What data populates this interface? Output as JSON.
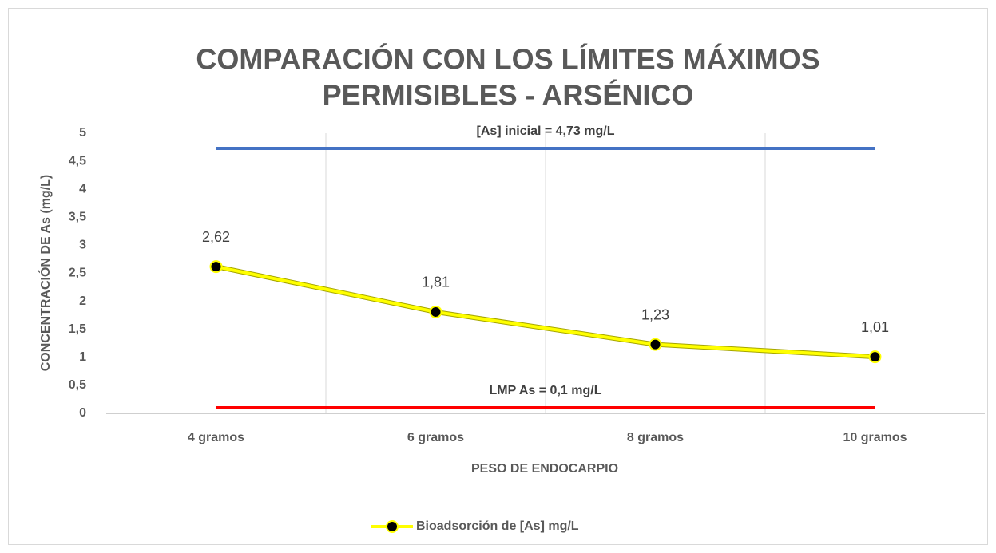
{
  "chart_data": {
    "type": "line",
    "title": [
      "COMPARACIÓN CON LOS LÍMITES MÁXIMOS",
      "PERMISIBLES - ARSÉNICO"
    ],
    "x_label": "PESO DE ENDOCARPIO",
    "y_label": "CONCENTRACIÓN DE As (mg/L)",
    "categories": [
      "4 gramos",
      "6 gramos",
      "8 gramos",
      "10 gramos"
    ],
    "series": [
      {
        "name": "Bioadsorción de [As] mg/L",
        "color": "#ffff00",
        "marker_color": "#000000",
        "values": [
          2.62,
          1.81,
          1.23,
          1.01
        ],
        "value_labels": [
          "2,62",
          "1,81",
          "1,23",
          "1,01"
        ]
      }
    ],
    "reference_lines": [
      {
        "value": 4.73,
        "label": "[As] inicial = 4,73 mg/L",
        "color": "#4472c4"
      },
      {
        "value": 0.1,
        "label": "LMP As = 0,1 mg/L",
        "color": "#ff0000"
      }
    ],
    "ylim": [
      0,
      5
    ],
    "yticks": [
      0,
      {
        "value": 0.5,
        "label": "0,5"
      },
      1,
      {
        "value": 1.5,
        "label": "1,5"
      },
      2,
      {
        "value": 2.5,
        "label": "2,5"
      },
      3,
      {
        "value": 3.5,
        "label": "3,5"
      },
      4,
      {
        "value": 4.5,
        "label": "4,5"
      },
      5
    ],
    "grid": "x",
    "legend": "bottom"
  }
}
